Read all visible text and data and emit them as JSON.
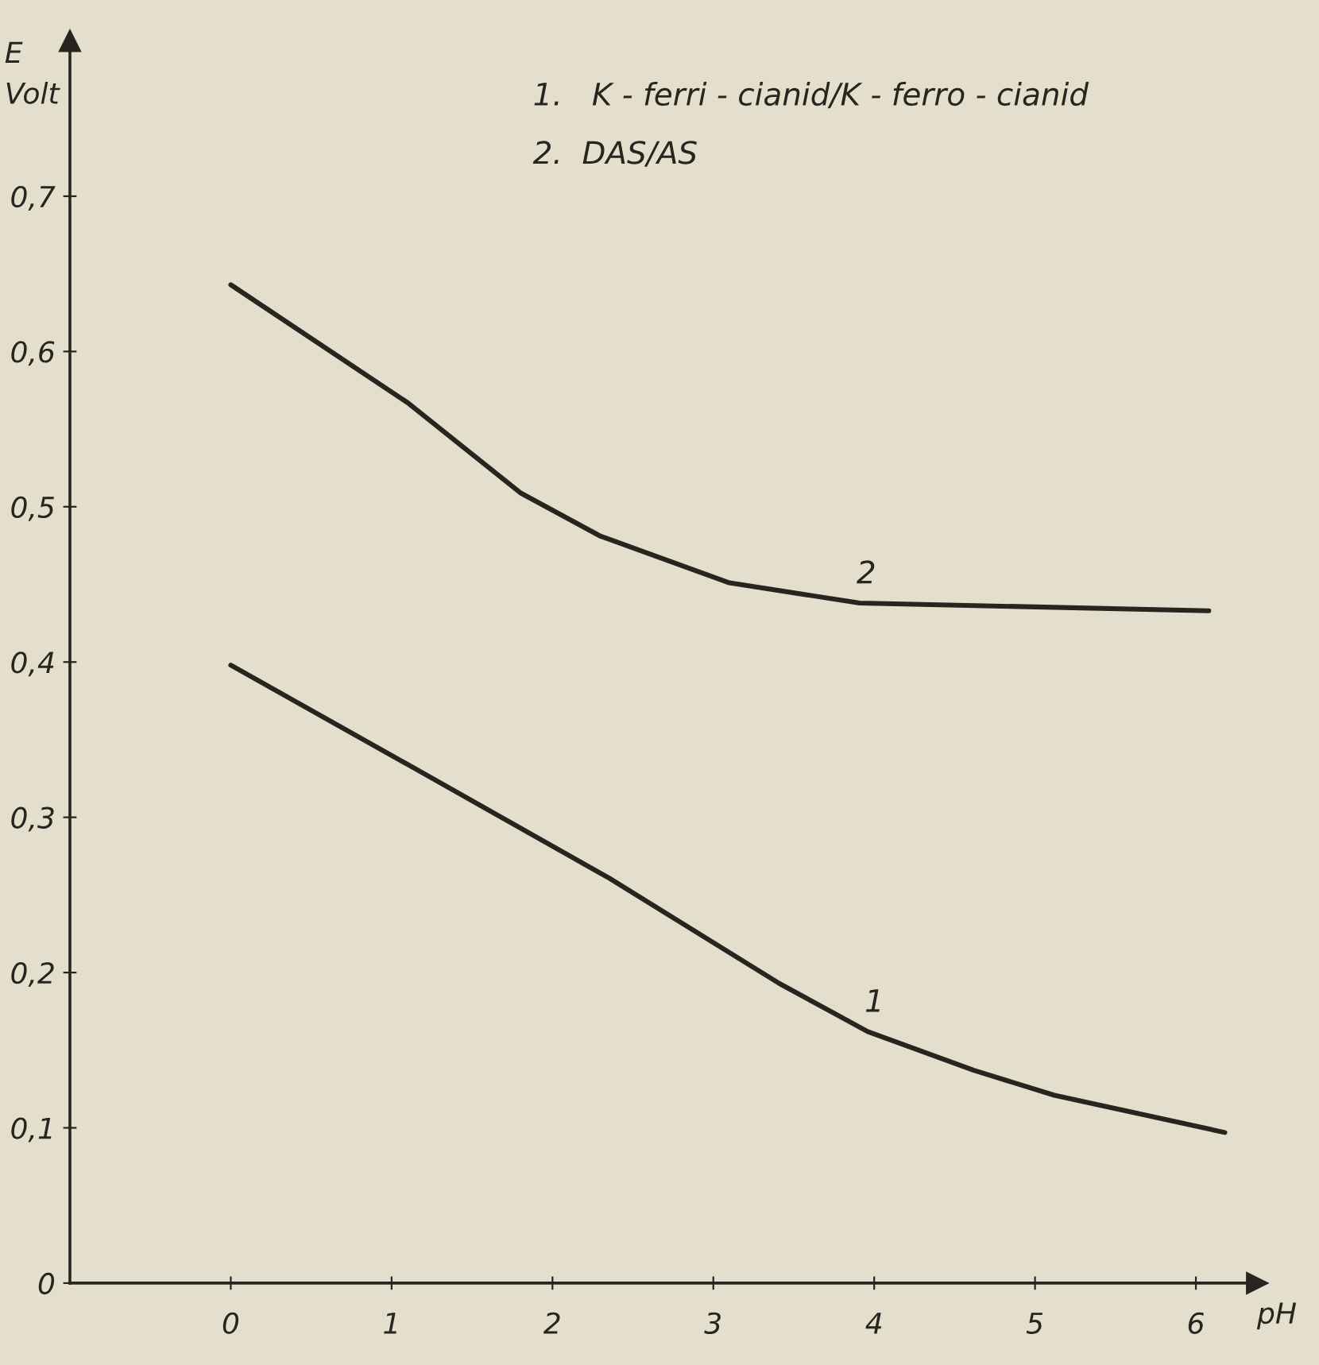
{
  "chart_data": {
    "type": "line",
    "ylabel": "E\nVolt",
    "xlabel": "pH",
    "series": [
      {
        "color": "#2a2420",
        "x": [
          0,
          1.1,
          2.35,
          3.41,
          3.96,
          4.62,
          5.12,
          6.18
        ],
        "values": [
          0.398,
          0.334,
          0.261,
          0.193,
          0.162,
          0.137,
          0.121,
          0.097
        ]
      },
      {
        "color": "#2a2420",
        "x": [
          0,
          1.1,
          1.8,
          2.3,
          3.1,
          3.91,
          6.08
        ],
        "values": [
          0.643,
          0.567,
          0.509,
          0.481,
          0.451,
          0.438,
          0.433
        ]
      }
    ],
    "annotations": [
      "1.   K - ferri - cianid/K - ferro - cianid",
      "2.  DAS/AS",
      {
        "text": "1",
        "x": 3.96,
        "y": 0.162
      },
      {
        "text": "2",
        "x": 3.91,
        "y": 0.438
      }
    ],
    "xlim": [
      -1.0,
      6.38
    ],
    "ylim": [
      0,
      0.8
    ],
    "xticks": [
      0,
      1,
      2,
      3,
      4,
      5,
      6
    ],
    "yticks": [
      0,
      {
        "value": 0.1,
        "label": "0,1"
      },
      {
        "value": 0.2,
        "label": "0,2"
      },
      {
        "value": 0.3,
        "label": "0,3"
      },
      {
        "value": 0.4,
        "label": "0,4"
      },
      {
        "value": 0.5,
        "label": "0,5"
      },
      {
        "value": 0.6,
        "label": "0,6"
      },
      {
        "value": 0.7,
        "label": "0,7"
      }
    ],
    "grid": false,
    "marker": "none",
    "line_style": "solid"
  }
}
